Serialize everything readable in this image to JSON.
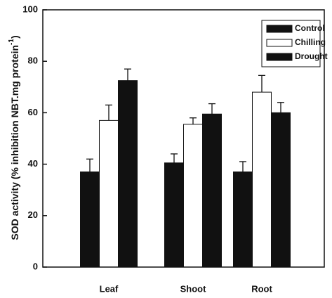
{
  "chart_data": {
    "type": "bar",
    "ylabel": "SOD activity (% inhibition NBT.mg protein",
    "ylabel_superscript": "-1",
    "ylabel_close": ")",
    "xlabel": "",
    "categories": [
      "Leaf",
      "Shoot",
      "Root"
    ],
    "ylim": [
      0,
      100
    ],
    "yticks": [
      0,
      20,
      40,
      60,
      80,
      100
    ],
    "grid": false,
    "legend_position": "top-right",
    "series": [
      {
        "name": "Control",
        "values": [
          37,
          40.5,
          37
        ],
        "errors": [
          5,
          3.5,
          4
        ],
        "color": "#111111"
      },
      {
        "name": "Chilling",
        "values": [
          57,
          55.5,
          68
        ],
        "errors": [
          6,
          2.5,
          6.5
        ],
        "color": "#ffffff"
      },
      {
        "name": "Drought",
        "values": [
          72.5,
          59.5,
          60
        ],
        "errors": [
          4.5,
          4,
          4
        ],
        "color": "#111111"
      }
    ]
  }
}
